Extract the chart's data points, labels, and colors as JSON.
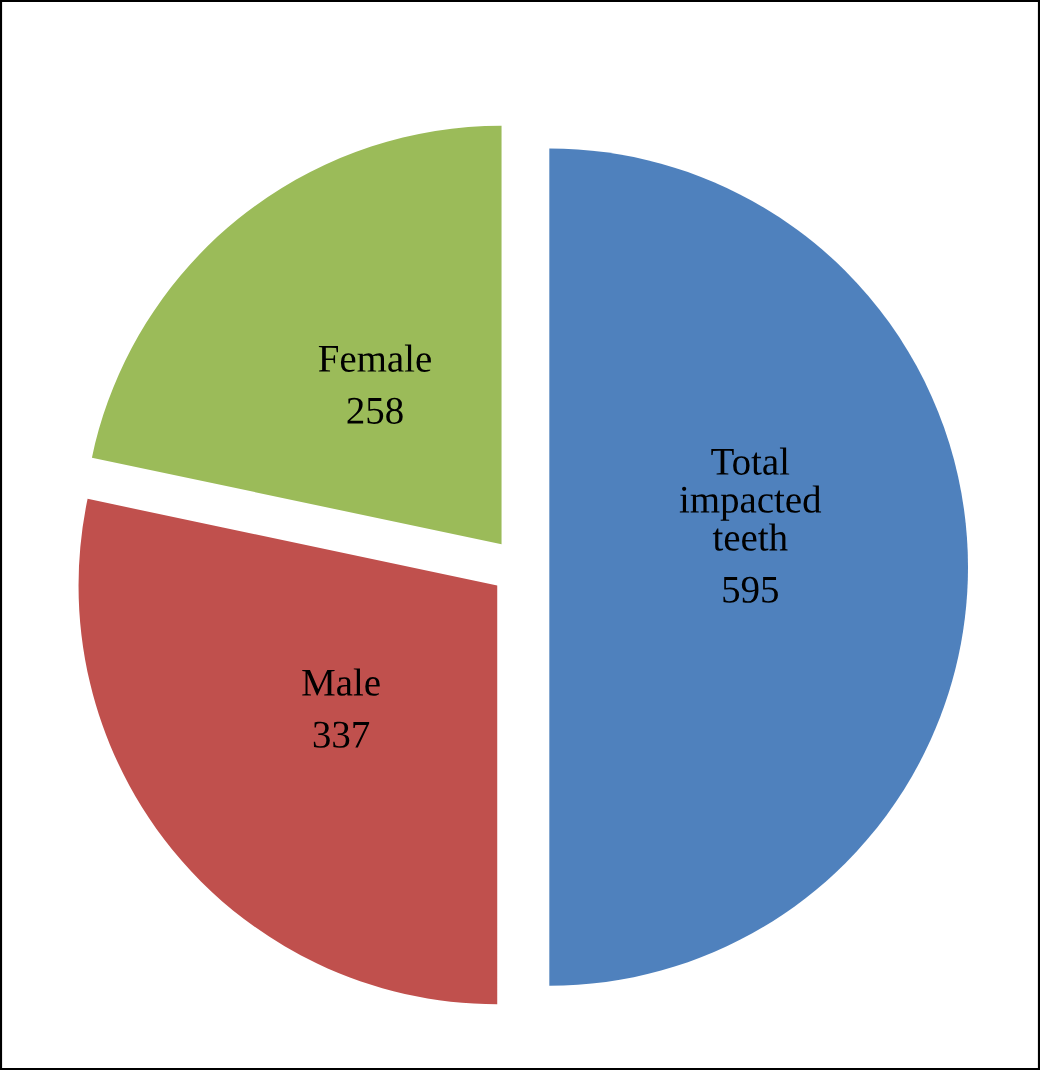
{
  "chart_data": {
    "type": "pie",
    "categories": [
      "Total impacted teeth",
      "Male",
      "Female"
    ],
    "values": [
      595,
      337,
      258
    ],
    "colors": [
      "#4f81bd",
      "#c0504d",
      "#9bbb59"
    ],
    "data_labels": true,
    "legend": false
  }
}
